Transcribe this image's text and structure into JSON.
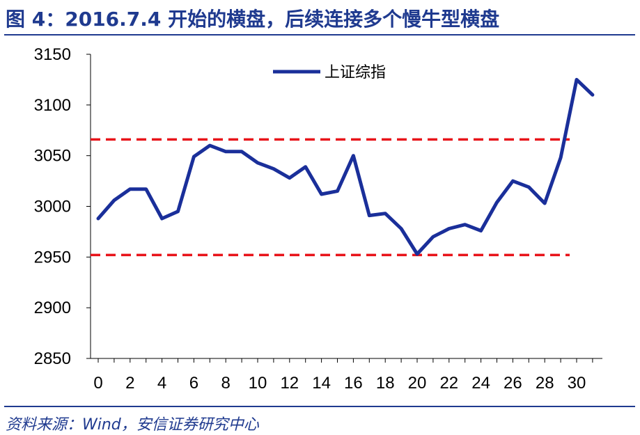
{
  "title": "图 4：2016.7.4 开始的横盘，后续连接多个慢牛型横盘",
  "source": "资料来源：Wind，安信证券研究中心",
  "colors": {
    "accent": "#1f3a8f",
    "series": "#1a2f9a",
    "band": "#e8141a"
  },
  "chart_data": {
    "type": "line",
    "title": "",
    "xlabel": "",
    "ylabel": "",
    "xlim": [
      0,
      31
    ],
    "ylim": [
      2850,
      3150
    ],
    "x_ticks": [
      0,
      2,
      4,
      6,
      8,
      10,
      12,
      14,
      16,
      18,
      20,
      22,
      24,
      26,
      28,
      30
    ],
    "y_ticks": [
      2850,
      2900,
      2950,
      3000,
      3050,
      3100,
      3150
    ],
    "legend_position": "top-center",
    "grid": false,
    "series": [
      {
        "name": "上证综指",
        "x": [
          0,
          1,
          2,
          3,
          4,
          5,
          6,
          7,
          8,
          9,
          10,
          11,
          12,
          13,
          14,
          15,
          16,
          17,
          18,
          19,
          20,
          21,
          22,
          23,
          24,
          25,
          26,
          27,
          28,
          29,
          30,
          31
        ],
        "values": [
          2988,
          3006,
          3017,
          3017,
          2988,
          2995,
          3049,
          3060,
          3054,
          3054,
          3043,
          3037,
          3028,
          3039,
          3012,
          3015,
          3050,
          2991,
          2993,
          2978,
          2953,
          2970,
          2978,
          2982,
          2976,
          3004,
          3025,
          3019,
          3003,
          3048,
          3125,
          3110
        ]
      }
    ],
    "reference_lines": [
      {
        "y": 3066,
        "style": "dashed"
      },
      {
        "y": 2952,
        "style": "dashed"
      }
    ]
  }
}
